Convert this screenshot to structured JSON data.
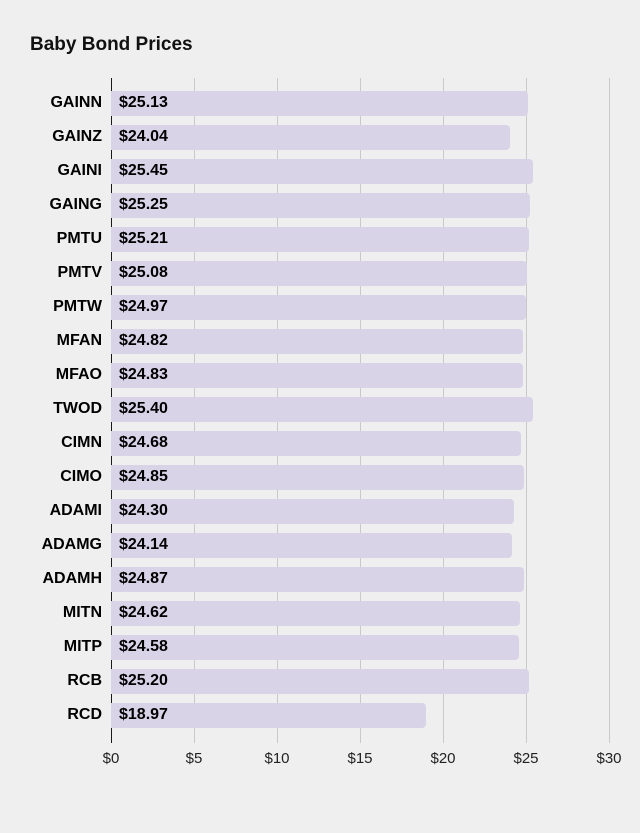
{
  "title": "Baby Bond Prices",
  "chart_data": {
    "type": "bar",
    "orientation": "horizontal",
    "title": "Baby Bond Prices",
    "categories": [
      "GAINN",
      "GAINZ",
      "GAINI",
      "GAING",
      "PMTU",
      "PMTV",
      "PMTW",
      "MFAN",
      "MFAO",
      "TWOD",
      "CIMN",
      "CIMO",
      "ADAMI",
      "ADAMG",
      "ADAMH",
      "MITN",
      "MITP",
      "RCB",
      "RCD"
    ],
    "values": [
      25.13,
      24.04,
      25.45,
      25.25,
      25.21,
      25.08,
      24.97,
      24.82,
      24.83,
      25.4,
      24.68,
      24.85,
      24.3,
      24.14,
      24.87,
      24.62,
      24.58,
      25.2,
      18.97
    ],
    "value_labels": [
      "$25.13",
      "$24.04",
      "$25.45",
      "$25.25",
      "$25.21",
      "$25.08",
      "$24.97",
      "$24.82",
      "$24.83",
      "$25.40",
      "$24.68",
      "$24.85",
      "$24.30",
      "$24.14",
      "$24.87",
      "$24.62",
      "$24.58",
      "$25.20",
      "$18.97"
    ],
    "xlabel": "",
    "ylabel": "",
    "xlim": [
      0,
      30
    ],
    "x_ticks": [
      0,
      5,
      10,
      15,
      20,
      25,
      30
    ],
    "x_tick_labels": [
      "$0",
      "$5",
      "$10",
      "$15",
      "$20",
      "$25",
      "$30"
    ],
    "grid": true,
    "legend": false,
    "colors": {
      "background": "#efefef",
      "bar": "#d9d3e8",
      "gridline": "#c9c9c9",
      "zero_line": "#1a1a1a",
      "label_text": "#000000",
      "tick_text": "#222222"
    }
  }
}
